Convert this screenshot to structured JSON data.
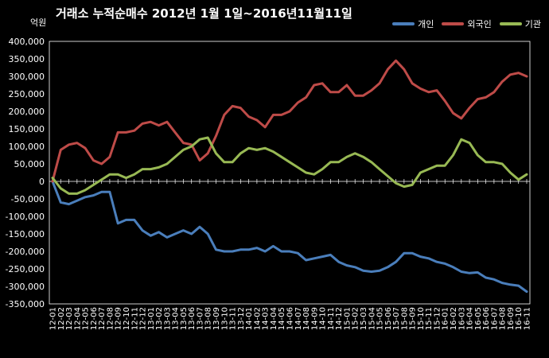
{
  "chart_data": {
    "type": "line",
    "title": "거래소 누적순매수 2012년 1월 1일~2016년11월11일",
    "ylabel": "억원",
    "xlabel": "",
    "ylim": [
      -350000,
      400000
    ],
    "yticks": [
      400000,
      350000,
      300000,
      250000,
      200000,
      150000,
      100000,
      50000,
      0,
      -50000,
      -100000,
      -150000,
      -200000,
      -250000,
      -300000,
      -350000
    ],
    "ytick_labels": [
      "400,000",
      "350,000",
      "300,000",
      "250,000",
      "200,000",
      "150,000",
      "100,000",
      "50,000",
      "0",
      "-50,000",
      "-100,000",
      "-150,000",
      "-200,000",
      "-250,000",
      "-300,000",
      "-350,000"
    ],
    "grid": false,
    "legend": "top-right",
    "categories": [
      "12-01",
      "12-02",
      "12-03",
      "12-04",
      "12-05",
      "12-06",
      "12-07",
      "12-08",
      "12-09",
      "12-10",
      "12-11",
      "12-12",
      "13-01",
      "13-02",
      "13-03",
      "13-04",
      "13-05",
      "13-06",
      "13-07",
      "13-08",
      "13-09",
      "13-10",
      "13-11",
      "13-12",
      "14-01",
      "14-02",
      "14-03",
      "14-04",
      "14-05",
      "14-06",
      "14-07",
      "14-08",
      "14-09",
      "14-10",
      "14-11",
      "14-12",
      "15-01",
      "15-02",
      "15-03",
      "15-04",
      "15-05",
      "15-06",
      "15-07",
      "15-08",
      "15-09",
      "15-10",
      "15-11",
      "15-12",
      "16-01",
      "16-02",
      "16-03",
      "16-04",
      "16-05",
      "16-06",
      "16-07",
      "16-08",
      "16-09",
      "16-10",
      "16-11"
    ],
    "series": [
      {
        "name": "개인",
        "color": "#4a7ebb",
        "values": [
          0,
          -60000,
          -65000,
          -55000,
          -45000,
          -40000,
          -30000,
          -30000,
          -120000,
          -110000,
          -110000,
          -140000,
          -155000,
          -145000,
          -160000,
          -150000,
          -140000,
          -150000,
          -130000,
          -150000,
          -195000,
          -200000,
          -200000,
          -195000,
          -195000,
          -190000,
          -200000,
          -185000,
          -200000,
          -200000,
          -205000,
          -225000,
          -220000,
          -215000,
          -210000,
          -230000,
          -240000,
          -245000,
          -255000,
          -258000,
          -255000,
          -245000,
          -230000,
          -205000,
          -205000,
          -215000,
          -220000,
          -230000,
          -235000,
          -245000,
          -258000,
          -262000,
          -260000,
          -275000,
          -280000,
          -290000,
          -295000,
          -298000,
          -315000
        ]
      },
      {
        "name": "외국인",
        "color": "#be4b48",
        "values": [
          0,
          90000,
          105000,
          110000,
          95000,
          60000,
          50000,
          70000,
          140000,
          140000,
          145000,
          165000,
          170000,
          160000,
          170000,
          140000,
          110000,
          105000,
          60000,
          80000,
          130000,
          190000,
          215000,
          210000,
          185000,
          175000,
          155000,
          190000,
          190000,
          200000,
          225000,
          240000,
          275000,
          280000,
          255000,
          255000,
          275000,
          245000,
          245000,
          260000,
          280000,
          320000,
          345000,
          320000,
          280000,
          265000,
          255000,
          260000,
          230000,
          195000,
          180000,
          210000,
          235000,
          240000,
          255000,
          285000,
          305000,
          310000,
          300000
        ]
      },
      {
        "name": "기관",
        "color": "#98b954",
        "values": [
          10000,
          -20000,
          -35000,
          -35000,
          -25000,
          -10000,
          5000,
          20000,
          20000,
          10000,
          20000,
          35000,
          35000,
          40000,
          50000,
          70000,
          90000,
          100000,
          120000,
          125000,
          80000,
          55000,
          55000,
          80000,
          95000,
          90000,
          95000,
          85000,
          70000,
          55000,
          40000,
          25000,
          20000,
          35000,
          55000,
          55000,
          70000,
          80000,
          70000,
          55000,
          35000,
          15000,
          -5000,
          -15000,
          -10000,
          25000,
          35000,
          45000,
          45000,
          75000,
          120000,
          110000,
          75000,
          55000,
          55000,
          50000,
          25000,
          5000,
          20000
        ]
      }
    ]
  }
}
